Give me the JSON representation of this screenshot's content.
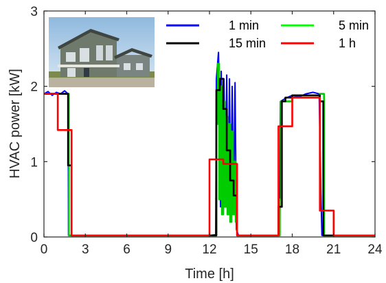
{
  "chart_data": {
    "type": "line",
    "xlabel": "Time [h]",
    "ylabel": "HVAC power [kW]",
    "xlim": [
      0,
      24
    ],
    "ylim": [
      0,
      3
    ],
    "xticks": [
      0,
      3,
      6,
      9,
      12,
      15,
      18,
      21,
      24
    ],
    "yticks": [
      0,
      1,
      2,
      3
    ],
    "xtick_labels": [
      "0",
      "3",
      "6",
      "9",
      "12",
      "15",
      "18",
      "21",
      "24"
    ],
    "ytick_labels": [
      "0",
      "1",
      "2",
      "3"
    ],
    "grid": false,
    "legend_position": "top-right",
    "inset_image": "house-photo",
    "series": [
      {
        "name": "1 min",
        "color": "#0000ff",
        "style": "line",
        "x": [
          0,
          0.3,
          0.6,
          0.9,
          1.2,
          1.5,
          1.75,
          1.78,
          2.5,
          4,
          6,
          8,
          10,
          12,
          12.45,
          12.5,
          12.65,
          12.75,
          12.8,
          12.85,
          12.95,
          13.05,
          13.15,
          13.25,
          13.35,
          13.45,
          13.55,
          13.65,
          13.75,
          13.85,
          13.95,
          14.1,
          15,
          17.1,
          17.15,
          17.5,
          18,
          18.5,
          19,
          19.5,
          19.95,
          20.05,
          20.15,
          21,
          24
        ],
        "y": [
          1.9,
          1.93,
          1.88,
          1.92,
          1.9,
          1.94,
          1.9,
          0.02,
          0.02,
          0.02,
          0.02,
          0.02,
          0.02,
          0.02,
          0.03,
          2.1,
          2.45,
          1.6,
          0.4,
          2.2,
          0.3,
          2.1,
          0.5,
          2.15,
          0.4,
          2.1,
          0.3,
          2.0,
          0.4,
          2.05,
          0.1,
          0.02,
          0.02,
          0.02,
          1.8,
          1.84,
          1.88,
          1.86,
          1.9,
          1.92,
          1.9,
          0.8,
          0.02,
          0.02,
          0.02
        ]
      },
      {
        "name": "5 min",
        "color": "#00cc00",
        "style": "step",
        "x": [
          0,
          1.8,
          12.5,
          12.6,
          12.7,
          12.8,
          12.9,
          13.0,
          13.1,
          13.2,
          13.3,
          13.4,
          13.5,
          13.6,
          13.7,
          13.8,
          13.9,
          14.0,
          17.1,
          17.2,
          18,
          20,
          20.3,
          24
        ],
        "y": [
          1.9,
          0.02,
          1.5,
          2.3,
          0.5,
          2.0,
          0.3,
          1.8,
          0.4,
          1.6,
          0.3,
          1.5,
          0.2,
          1.4,
          0.3,
          1.0,
          0.2,
          0.02,
          0.5,
          1.8,
          1.85,
          1.9,
          0.02,
          0.02
        ]
      },
      {
        "name": "15 min",
        "color": "#000000",
        "style": "step",
        "x": [
          0,
          1.75,
          2.0,
          12.5,
          12.75,
          13.0,
          13.25,
          13.5,
          13.75,
          14.0,
          17.0,
          17.25,
          17.5,
          18,
          20,
          20.25,
          24
        ],
        "y": [
          1.9,
          0.95,
          0.02,
          1.95,
          2.1,
          1.7,
          1.15,
          0.75,
          0.55,
          0.02,
          0.4,
          1.8,
          1.85,
          1.88,
          1.8,
          0.02,
          0.02
        ]
      },
      {
        "name": "1 h",
        "color": "#ff0000",
        "style": "step",
        "x": [
          0,
          1,
          2,
          12,
          13,
          14,
          17,
          18,
          20,
          21,
          24
        ],
        "y": [
          1.9,
          1.42,
          0.02,
          1.03,
          0.97,
          0.02,
          1.47,
          1.85,
          0.35,
          0.02,
          0.02
        ]
      }
    ]
  },
  "legend": [
    "1 min",
    "5 min",
    "15 min",
    "1 h"
  ]
}
